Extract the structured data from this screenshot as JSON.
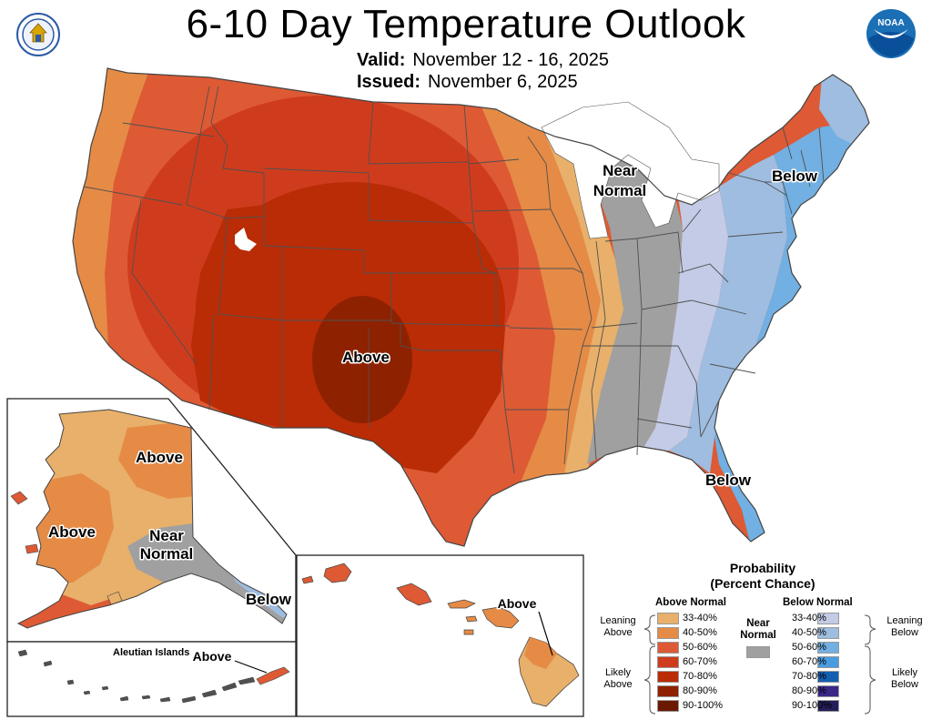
{
  "header": {
    "title": "6-10 Day Temperature Outlook",
    "valid_label": "Valid:",
    "valid_value": "November 12 - 16, 2025",
    "issued_label": "Issued:",
    "issued_value": "November 6, 2025"
  },
  "logos": {
    "left": "doc-seal-icon",
    "right": "noaa-logo-icon",
    "right_text": "NOAA"
  },
  "map_labels": {
    "conus_above": "Above",
    "conus_near_normal_line1": "Near",
    "conus_near_normal_line2": "Normal",
    "conus_below_ne": "Below",
    "conus_below_se": "Below",
    "ak_above_north": "Above",
    "ak_above_west": "Above",
    "ak_near_line1": "Near",
    "ak_near_line2": "Normal",
    "ak_below": "Below",
    "aleutian_title": "Aleutian Islands",
    "aleutian_above": "Above",
    "hi_above": "Above"
  },
  "legend": {
    "title_line1": "Probability",
    "title_line2": "(Percent Chance)",
    "above_header": "Above Normal",
    "below_header": "Below Normal",
    "near_line1": "Near",
    "near_line2": "Normal",
    "near_color": "#a0a0a0",
    "leaning_above": [
      "Leaning",
      "Above"
    ],
    "likely_above": [
      "Likely",
      "Above"
    ],
    "leaning_below": [
      "Leaning",
      "Below"
    ],
    "likely_below": [
      "Likely",
      "Below"
    ],
    "above_classes": [
      {
        "range": "33-40%",
        "color": "#e8b06a"
      },
      {
        "range": "40-50%",
        "color": "#e58b46"
      },
      {
        "range": "50-60%",
        "color": "#dd5a34"
      },
      {
        "range": "60-70%",
        "color": "#cf3c1d"
      },
      {
        "range": "70-80%",
        "color": "#b92c06"
      },
      {
        "range": "80-90%",
        "color": "#8e2200"
      },
      {
        "range": "90-100%",
        "color": "#6b1900"
      }
    ],
    "below_classes": [
      {
        "range": "33-40%",
        "color": "#c3cbe6"
      },
      {
        "range": "40-50%",
        "color": "#9ebde0"
      },
      {
        "range": "50-60%",
        "color": "#72afe2"
      },
      {
        "range": "60-70%",
        "color": "#4b9be0"
      },
      {
        "range": "70-80%",
        "color": "#135fb0"
      },
      {
        "range": "80-90%",
        "color": "#3a2788"
      },
      {
        "range": "90-100%",
        "color": "#231f5a"
      }
    ]
  }
}
